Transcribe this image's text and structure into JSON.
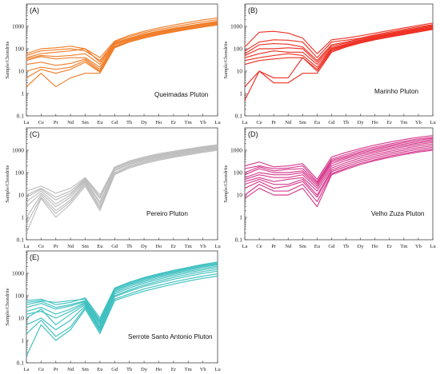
{
  "chart_data": [
    {
      "type": "line",
      "panel_label": "(A)",
      "pluton_label": "Queimadas Pluton",
      "ylabel": "Sample/Chondrite",
      "yscale": "log",
      "ylim": [
        0.1,
        10000
      ],
      "yticks": [
        "0.1",
        "1",
        "10",
        "100",
        "1000"
      ],
      "categories": [
        "La",
        "Ce",
        "Pr",
        "Nd",
        "Sm",
        "Eu",
        "Gd",
        "Tb",
        "Dy",
        "Ho",
        "Er",
        "Tm",
        "Yb",
        "Lu"
      ],
      "color": "#F07E2A",
      "series": [
        {
          "values": [
            60,
            100,
            110,
            130,
            100,
            40,
            220,
            400,
            600,
            850,
            1150,
            1500,
            1950,
            2400
          ]
        },
        {
          "values": [
            50,
            80,
            90,
            100,
            80,
            30,
            200,
            350,
            520,
            720,
            950,
            1250,
            1600,
            2000
          ]
        },
        {
          "values": [
            40,
            60,
            70,
            80,
            100,
            25,
            180,
            300,
            450,
            620,
            820,
            1050,
            1350,
            1700
          ]
        },
        {
          "values": [
            35,
            50,
            45,
            50,
            60,
            20,
            170,
            280,
            420,
            580,
            770,
            1000,
            1280,
            1600
          ]
        },
        {
          "values": [
            30,
            45,
            35,
            40,
            40,
            15,
            160,
            260,
            400,
            550,
            720,
            950,
            1200,
            1500
          ]
        },
        {
          "values": [
            20,
            25,
            18,
            22,
            35,
            12,
            150,
            250,
            380,
            520,
            680,
            900,
            1150,
            1400
          ]
        },
        {
          "values": [
            10,
            15,
            12,
            15,
            30,
            10,
            130,
            230,
            350,
            480,
            630,
            820,
            1050,
            1300
          ]
        },
        {
          "values": [
            5,
            12,
            8,
            12,
            25,
            9,
            120,
            210,
            320,
            450,
            600,
            780,
            1000,
            1250
          ]
        },
        {
          "values": [
            2,
            8,
            2,
            5,
            8,
            8,
            110,
            200,
            300,
            420,
            560,
            730,
            930,
            1150
          ]
        }
      ]
    },
    {
      "type": "line",
      "panel_label": "(B)",
      "pluton_label": "Marinho Pluton",
      "ylabel": "Sample/Chondrite",
      "yscale": "log",
      "ylim": [
        0.1,
        10000
      ],
      "yticks": [
        "0.1",
        "1",
        "10",
        "100",
        "1000"
      ],
      "categories": [
        "La",
        "Ce",
        "Pr",
        "Nd",
        "Sm",
        "Eu",
        "Gd",
        "Tb",
        "Dy",
        "Ho",
        "Er",
        "Tm",
        "Yb",
        "Lu"
      ],
      "color": "#EE3124",
      "series": [
        {
          "values": [
            120,
            550,
            600,
            500,
            300,
            60,
            250,
            300,
            380,
            500,
            650,
            850,
            1100,
            1400
          ]
        },
        {
          "values": [
            80,
            200,
            250,
            240,
            200,
            40,
            200,
            240,
            300,
            420,
            560,
            730,
            950,
            1200
          ]
        },
        {
          "values": [
            60,
            150,
            170,
            160,
            120,
            30,
            150,
            200,
            280,
            380,
            500,
            650,
            850,
            1100
          ]
        },
        {
          "values": [
            50,
            100,
            100,
            110,
            100,
            25,
            130,
            180,
            250,
            350,
            460,
            600,
            780,
            1000
          ]
        },
        {
          "values": [
            40,
            60,
            80,
            70,
            70,
            20,
            110,
            160,
            230,
            320,
            430,
            560,
            730,
            950
          ]
        },
        {
          "values": [
            30,
            40,
            50,
            60,
            50,
            15,
            100,
            150,
            220,
            300,
            400,
            520,
            680,
            880
          ]
        },
        {
          "values": [
            20,
            30,
            35,
            40,
            40,
            12,
            90,
            140,
            200,
            280,
            370,
            480,
            630,
            820
          ]
        },
        {
          "values": [
            2,
            10,
            5,
            5,
            40,
            10,
            80,
            130,
            190,
            260,
            340,
            450,
            590,
            770
          ]
        },
        {
          "values": [
            0.5,
            10,
            3,
            3,
            8,
            8,
            70,
            120,
            180,
            250,
            330,
            430,
            560,
            730
          ]
        }
      ]
    },
    {
      "type": "line",
      "panel_label": "(C)",
      "pluton_label": "Pereiro Pluton",
      "ylabel": "Sample/Chondrite",
      "yscale": "log",
      "ylim": [
        0.1,
        10000
      ],
      "yticks": [
        "0.1",
        "1",
        "10",
        "100",
        "1000"
      ],
      "categories": [
        "La",
        "Ce",
        "Pr",
        "Nd",
        "Sm",
        "Eu",
        "Gd",
        "Tb",
        "Dy",
        "Ho",
        "Er",
        "Tm",
        "Yb",
        "Lu"
      ],
      "color": "#BDBDBD",
      "series": [
        {
          "values": [
            15,
            25,
            12,
            20,
            60,
            10,
            180,
            330,
            500,
            700,
            900,
            1150,
            1450,
            1750
          ]
        },
        {
          "values": [
            10,
            20,
            8,
            15,
            55,
            8,
            160,
            300,
            450,
            630,
            820,
            1050,
            1350,
            1650
          ]
        },
        {
          "values": [
            8,
            18,
            6,
            12,
            50,
            7,
            150,
            280,
            420,
            580,
            760,
            980,
            1250,
            1550
          ]
        },
        {
          "values": [
            5,
            15,
            4,
            10,
            45,
            5,
            130,
            250,
            380,
            530,
            700,
            900,
            1150,
            1400
          ]
        },
        {
          "values": [
            3,
            12,
            3,
            8,
            40,
            4,
            120,
            230,
            350,
            490,
            640,
            830,
            1050,
            1300
          ]
        },
        {
          "values": [
            1,
            10,
            2,
            6,
            35,
            3,
            100,
            200,
            310,
            440,
            580,
            750,
            960,
            1200
          ]
        },
        {
          "values": [
            0.5,
            8,
            1.5,
            5,
            30,
            2.5,
            90,
            180,
            280,
            400,
            530,
            690,
            880,
            1100
          ]
        },
        {
          "values": [
            0.2,
            7,
            1,
            4,
            25,
            2,
            80,
            160,
            250,
            360,
            480,
            620,
            800,
            1000
          ]
        }
      ]
    },
    {
      "type": "line",
      "panel_label": "(D)",
      "pluton_label": "Velho Zuza Pluton",
      "ylabel": "Sample/Chondrite",
      "yscale": "log",
      "ylim": [
        0.1,
        10000
      ],
      "yticks": [
        "0.1",
        "1",
        "10",
        "100",
        "1000"
      ],
      "categories": [
        "La",
        "Ce",
        "Pr",
        "Nd",
        "Sm",
        "Eu",
        "Gd",
        "Tb",
        "Dy",
        "Ho",
        "Er",
        "Tm",
        "Yb",
        "Lu"
      ],
      "color": "#D63C8F",
      "series": [
        {
          "values": [
            200,
            300,
            180,
            200,
            250,
            50,
            500,
            800,
            1200,
            1700,
            2300,
            3000,
            3800,
            4500
          ]
        },
        {
          "values": [
            150,
            200,
            150,
            160,
            200,
            40,
            400,
            650,
            1000,
            1400,
            1900,
            2500,
            3200,
            3800
          ]
        },
        {
          "values": [
            100,
            180,
            120,
            140,
            150,
            35,
            350,
            550,
            850,
            1200,
            1650,
            2200,
            2800,
            3400
          ]
        },
        {
          "values": [
            80,
            150,
            100,
            100,
            120,
            30,
            300,
            480,
            750,
            1050,
            1450,
            1900,
            2400,
            3000
          ]
        },
        {
          "values": [
            60,
            100,
            80,
            80,
            100,
            25,
            250,
            420,
            650,
            900,
            1250,
            1650,
            2100,
            2600
          ]
        },
        {
          "values": [
            50,
            80,
            60,
            60,
            80,
            20,
            200,
            350,
            550,
            780,
            1080,
            1430,
            1830,
            2250
          ]
        },
        {
          "values": [
            40,
            60,
            40,
            50,
            60,
            15,
            160,
            280,
            450,
            650,
            900,
            1200,
            1550,
            1900
          ]
        },
        {
          "values": [
            30,
            50,
            30,
            30,
            50,
            10,
            130,
            230,
            370,
            540,
            760,
            1010,
            1300,
            1600
          ]
        },
        {
          "values": [
            20,
            40,
            20,
            25,
            40,
            8,
            110,
            190,
            310,
            450,
            640,
            850,
            1100,
            1350
          ]
        },
        {
          "values": [
            10,
            30,
            15,
            15,
            30,
            5,
            90,
            160,
            260,
            380,
            540,
            720,
            930,
            1150
          ]
        },
        {
          "values": [
            7,
            20,
            10,
            10,
            20,
            3,
            80,
            140,
            230,
            340,
            480,
            640,
            830,
            1000
          ]
        }
      ]
    },
    {
      "type": "line",
      "panel_label": "(E)",
      "pluton_label": "Serrote Santo Antonio Pluton",
      "ylabel": "Sample/Chondrite",
      "yscale": "log",
      "ylim": [
        0.1,
        10000
      ],
      "yticks": [
        "0.1",
        "1",
        "10",
        "100",
        "1000"
      ],
      "categories": [
        "La",
        "Ce",
        "Pr",
        "Nd",
        "Sm",
        "Eu",
        "Gd",
        "Tb",
        "Dy",
        "Ho",
        "Er",
        "Tm",
        "Yb",
        "Lu"
      ],
      "color": "#3FC0C0",
      "series": [
        {
          "values": [
            60,
            70,
            40,
            50,
            80,
            10,
            220,
            400,
            650,
            950,
            1350,
            1850,
            2500,
            3200
          ]
        },
        {
          "values": [
            50,
            60,
            50,
            60,
            70,
            8,
            200,
            370,
            600,
            880,
            1250,
            1700,
            2300,
            2900
          ]
        },
        {
          "values": [
            40,
            55,
            30,
            40,
            60,
            7,
            180,
            330,
            540,
            800,
            1130,
            1550,
            2100,
            2650
          ]
        },
        {
          "values": [
            30,
            45,
            25,
            35,
            55,
            6,
            160,
            300,
            480,
            720,
            1020,
            1400,
            1900,
            2400
          ]
        },
        {
          "values": [
            20,
            30,
            15,
            25,
            50,
            5,
            140,
            260,
            420,
            630,
            900,
            1230,
            1650,
            2100
          ]
        },
        {
          "values": [
            15,
            20,
            10,
            20,
            45,
            4,
            120,
            220,
            360,
            540,
            780,
            1070,
            1430,
            1800
          ]
        },
        {
          "values": [
            10,
            25,
            5,
            15,
            40,
            3.5,
            100,
            180,
            300,
            450,
            650,
            900,
            1200,
            1500
          ]
        },
        {
          "values": [
            5,
            10,
            3,
            8,
            35,
            3,
            90,
            160,
            260,
            380,
            540,
            740,
            990,
            1250
          ]
        },
        {
          "values": [
            2,
            8,
            1.5,
            4,
            30,
            2.5,
            70,
            120,
            200,
            290,
            410,
            560,
            750,
            950
          ]
        },
        {
          "values": [
            0.2,
            5,
            1,
            3,
            25,
            2,
            60,
            100,
            160,
            230,
            330,
            450,
            600,
            750
          ]
        }
      ]
    }
  ]
}
